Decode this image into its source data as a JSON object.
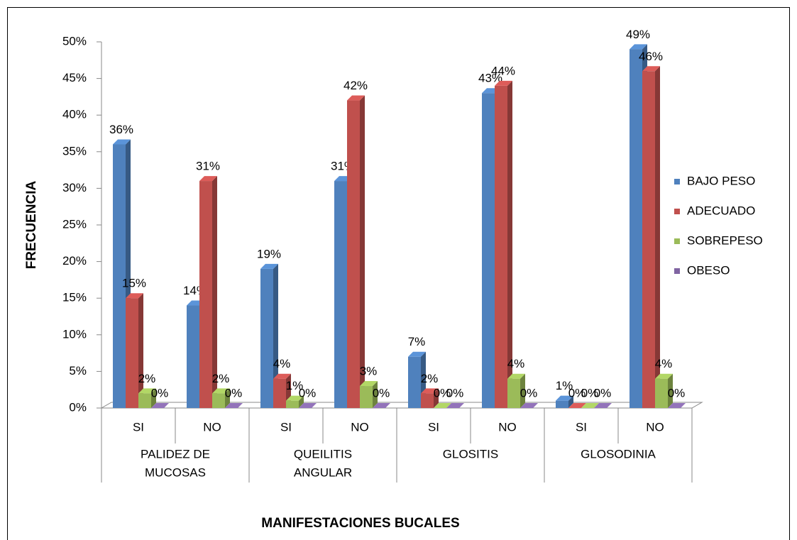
{
  "chart_data": {
    "type": "bar3d",
    "ylabel": "FRECUENCIA",
    "xlabel": "MANIFESTACIONES BUCALES",
    "categories": [
      "SI",
      "NO",
      "SI",
      "NO",
      "SI",
      "NO",
      "SI",
      "NO"
    ],
    "groups": [
      {
        "lines": [
          "PALIDEZ DE",
          "MUCOSAS"
        ]
      },
      {
        "lines": [
          "QUEILITIS",
          "ANGULAR"
        ]
      },
      {
        "lines": [
          "GLOSITIS"
        ]
      },
      {
        "lines": [
          "GLOSODINIA"
        ]
      }
    ],
    "series": [
      {
        "name": "BAJO PESO",
        "color": "#4f81bd",
        "values": [
          36,
          14,
          19,
          31,
          7,
          43,
          1,
          49
        ],
        "value_labels": [
          "36%",
          "14%",
          "19%",
          "31%",
          "7%",
          "43%",
          "1%",
          "49%"
        ]
      },
      {
        "name": "ADECUADO",
        "color": "#c0504d",
        "values": [
          15,
          31,
          4,
          42,
          2,
          44,
          0,
          46
        ],
        "value_labels": [
          "15%",
          "31%",
          "4%",
          "42%",
          "2%",
          "44%",
          "0%",
          "46%"
        ]
      },
      {
        "name": "SOBREPESO",
        "color": "#9bbb59",
        "values": [
          2,
          2,
          1,
          3,
          0,
          4,
          0,
          4
        ],
        "value_labels": [
          "2%",
          "2%",
          "1%",
          "3%",
          "0%",
          "4%",
          "0%",
          "4%"
        ]
      },
      {
        "name": "OBESO",
        "color": "#8064a2",
        "values": [
          0,
          0,
          0,
          0,
          0,
          0,
          0,
          0
        ],
        "value_labels": [
          "0%",
          "0%",
          "0%",
          "0%",
          "0%",
          "0%",
          "0%",
          "0%"
        ]
      }
    ],
    "ylim": [
      0,
      50
    ],
    "yticks": [
      {
        "value": 0,
        "label": "0%"
      },
      {
        "value": 5,
        "label": "5%"
      },
      {
        "value": 10,
        "label": "10%"
      },
      {
        "value": 15,
        "label": "15%"
      },
      {
        "value": 20,
        "label": "20%"
      },
      {
        "value": 25,
        "label": "25%"
      },
      {
        "value": 30,
        "label": "30%"
      },
      {
        "value": 35,
        "label": "35%"
      },
      {
        "value": 40,
        "label": "40%"
      },
      {
        "value": 45,
        "label": "45%"
      },
      {
        "value": 50,
        "label": "50%"
      }
    ],
    "legend": "right"
  }
}
